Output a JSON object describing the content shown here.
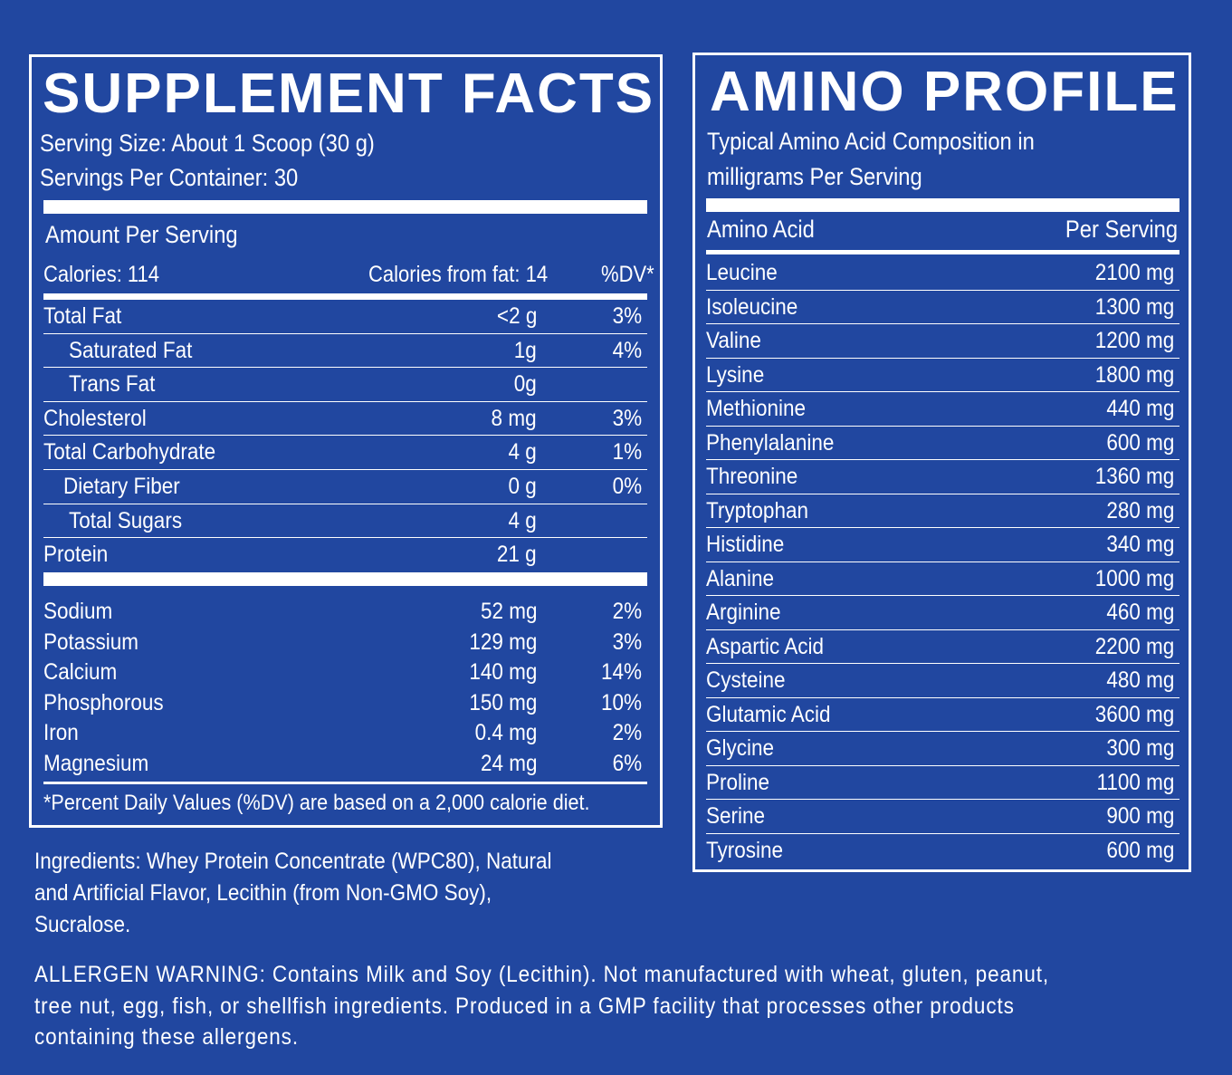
{
  "supplement_facts": {
    "title": "SUPPLEMENT FACTS",
    "serving_size": "Serving Size: About 1 Scoop (30 g)",
    "servings_per_container": "Servings Per Container: 30",
    "amount_per_serving": "Amount Per Serving",
    "calories": "Calories: 114",
    "calories_from_fat": "Calories from fat: 14",
    "dv_header": "%DV*",
    "nutrients": [
      {
        "name": "Total Fat",
        "amount": "<2 g",
        "dv": "3%",
        "indent": 0
      },
      {
        "name": "Saturated Fat",
        "amount": "1g",
        "dv": "4%",
        "indent": 2
      },
      {
        "name": "Trans Fat",
        "amount": "0g",
        "dv": "",
        "indent": 2
      },
      {
        "name": "Cholesterol",
        "amount": "8 mg",
        "dv": "3%",
        "indent": 0
      },
      {
        "name": "Total Carbohydrate",
        "amount": "4 g",
        "dv": "1%",
        "indent": 0
      },
      {
        "name": "Dietary Fiber",
        "amount": "0 g",
        "dv": "0%",
        "indent": 1
      },
      {
        "name": "Total Sugars",
        "amount": "4 g",
        "dv": "",
        "indent": 2
      },
      {
        "name": "Protein",
        "amount": "21 g",
        "dv": "",
        "indent": 0
      }
    ],
    "minerals": [
      {
        "name": "Sodium",
        "amount": "52 mg",
        "dv": "2%"
      },
      {
        "name": "Potassium",
        "amount": "129 mg",
        "dv": "3%"
      },
      {
        "name": "Calcium",
        "amount": "140 mg",
        "dv": "14%"
      },
      {
        "name": "Phosphorous",
        "amount": "150 mg",
        "dv": "10%"
      },
      {
        "name": "Iron",
        "amount": "0.4 mg",
        "dv": "2%"
      },
      {
        "name": "Magnesium",
        "amount": "24 mg",
        "dv": "6%"
      }
    ],
    "footnote": "*Percent Daily Values (%DV) are based on a 2,000 calorie diet."
  },
  "amino_profile": {
    "title": "AMINO PROFILE",
    "subtitle_line1": "Typical Amino Acid Composition in",
    "subtitle_line2": "milligrams Per Serving",
    "col_acid": "Amino Acid",
    "col_serving": "Per Serving",
    "rows": [
      {
        "name": "Leucine",
        "amount": "2100 mg"
      },
      {
        "name": "Isoleucine",
        "amount": "1300 mg"
      },
      {
        "name": "Valine",
        "amount": "1200 mg"
      },
      {
        "name": "Lysine",
        "amount": "1800 mg"
      },
      {
        "name": "Methionine",
        "amount": "440 mg"
      },
      {
        "name": "Phenylalanine",
        "amount": "600 mg"
      },
      {
        "name": "Threonine",
        "amount": "1360 mg"
      },
      {
        "name": "Tryptophan",
        "amount": "280 mg"
      },
      {
        "name": "Histidine",
        "amount": "340 mg"
      },
      {
        "name": "Alanine",
        "amount": "1000 mg"
      },
      {
        "name": "Arginine",
        "amount": "460 mg"
      },
      {
        "name": "Aspartic Acid",
        "amount": "2200 mg"
      },
      {
        "name": "Cysteine",
        "amount": "480 mg"
      },
      {
        "name": "Glutamic Acid",
        "amount": "3600 mg"
      },
      {
        "name": "Glycine",
        "amount": "300 mg"
      },
      {
        "name": "Proline",
        "amount": "1100 mg"
      },
      {
        "name": "Serine",
        "amount": "900 mg"
      },
      {
        "name": "Tyrosine",
        "amount": "600 mg"
      }
    ]
  },
  "ingredients": [
    "Ingredients: Whey Protein Concentrate (WPC80), Natural",
    "and Artificial Flavor, Lecithin (from Non-GMO Soy),",
    "Sucralose."
  ],
  "allergen": [
    "ALLERGEN WARNING: Contains Milk and Soy (Lecithin). Not manufactured with wheat, gluten, peanut,",
    "tree nut, egg, fish, or shellfish ingredients. Produced in a GMP facility that processes other products",
    "containing these allergens."
  ],
  "colors": {
    "background": "#2147a0",
    "foreground": "#ffffff"
  }
}
